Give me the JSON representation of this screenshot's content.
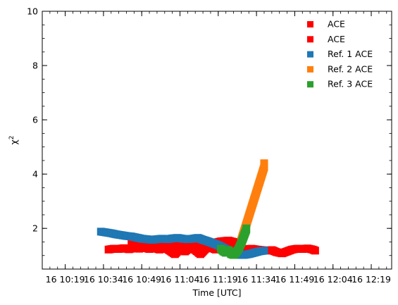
{
  "chart_data": {
    "type": "scatter",
    "xlabel": "Time [UTC]",
    "ylabel": "χ",
    "ylabel_superscript": "2",
    "ylim": [
      0.5,
      10
    ],
    "xlim": [
      "16 10:10",
      "16 12:27"
    ],
    "x_ticks": [
      "16 10:19",
      "16 10:34",
      "16 10:49",
      "16 11:04",
      "16 11:19",
      "16 11:34",
      "16 11:49",
      "16 12:04",
      "16 12:19"
    ],
    "y_ticks": [
      2,
      4,
      6,
      8,
      10
    ],
    "grid": false,
    "legend_position": "top-right",
    "series": [
      {
        "name": "ACE",
        "color": "#ff0000",
        "marker": "square",
        "points": [
          [
            "16 10:36",
            1.22
          ],
          [
            "16 10:38",
            1.25
          ],
          [
            "16 10:40",
            1.24
          ],
          [
            "16 10:42",
            1.27
          ],
          [
            "16 10:44",
            1.23
          ],
          [
            "16 10:46",
            1.28
          ],
          [
            "16 10:48",
            1.25
          ],
          [
            "16 10:50",
            1.3
          ],
          [
            "16 10:52",
            1.24
          ],
          [
            "16 10:54",
            1.28
          ],
          [
            "16 10:56",
            1.22
          ],
          [
            "16 10:58",
            1.3
          ],
          [
            "16 11:00",
            1.18
          ],
          [
            "16 11:02",
            1.05
          ],
          [
            "16 11:04",
            1.25
          ],
          [
            "16 11:06",
            1.15
          ],
          [
            "16 11:08",
            1.3
          ],
          [
            "16 11:10",
            1.2
          ],
          [
            "16 11:12",
            1.05
          ],
          [
            "16 11:14",
            1.25
          ],
          [
            "16 11:16",
            1.3
          ],
          [
            "16 11:18",
            1.22
          ],
          [
            "16 11:20",
            1.28
          ],
          [
            "16 11:22",
            1.25
          ],
          [
            "16 11:24",
            1.28
          ],
          [
            "16 11:26",
            1.24
          ],
          [
            "16 11:28",
            1.26
          ],
          [
            "16 11:30",
            1.22
          ],
          [
            "16 11:32",
            1.25
          ],
          [
            "16 11:34",
            1.22
          ],
          [
            "16 11:36",
            1.2
          ],
          [
            "16 11:38",
            1.18
          ],
          [
            "16 11:40",
            1.2
          ],
          [
            "16 11:42",
            1.12
          ],
          [
            "16 11:44",
            1.08
          ],
          [
            "16 11:46",
            1.15
          ],
          [
            "16 11:48",
            1.22
          ],
          [
            "16 11:50",
            1.25
          ],
          [
            "16 11:52",
            1.24
          ],
          [
            "16 11:54",
            1.26
          ],
          [
            "16 11:56",
            1.22
          ],
          [
            "16 11:57",
            1.18
          ]
        ]
      },
      {
        "name": "ACE",
        "color": "#ff0000",
        "marker": "square",
        "points": [
          [
            "16 10:45",
            1.48
          ],
          [
            "16 10:47",
            1.45
          ],
          [
            "16 10:50",
            1.42
          ],
          [
            "16 10:53",
            1.45
          ],
          [
            "16 10:56",
            1.4
          ],
          [
            "16 10:59",
            1.48
          ],
          [
            "16 11:02",
            1.42
          ],
          [
            "16 11:05",
            1.38
          ],
          [
            "16 11:08",
            1.45
          ],
          [
            "16 11:11",
            1.4
          ],
          [
            "16 11:14",
            1.48
          ],
          [
            "16 11:17",
            1.45
          ],
          [
            "16 11:20",
            1.52
          ],
          [
            "16 11:23",
            1.55
          ],
          [
            "16 11:25",
            1.5
          ],
          [
            "16 11:27",
            1.45
          ]
        ]
      },
      {
        "name": "Ref. 1 ACE",
        "color": "#1f77b4",
        "marker": "square",
        "points": [
          [
            "16 10:33",
            1.88
          ],
          [
            "16 10:35",
            1.85
          ],
          [
            "16 10:37",
            1.82
          ],
          [
            "16 10:39",
            1.78
          ],
          [
            "16 10:41",
            1.75
          ],
          [
            "16 10:43",
            1.72
          ],
          [
            "16 10:45",
            1.7
          ],
          [
            "16 10:47",
            1.66
          ],
          [
            "16 10:49",
            1.62
          ],
          [
            "16 10:51",
            1.6
          ],
          [
            "16 10:53",
            1.58
          ],
          [
            "16 10:55",
            1.6
          ],
          [
            "16 10:57",
            1.62
          ],
          [
            "16 10:59",
            1.6
          ],
          [
            "16 11:01",
            1.63
          ],
          [
            "16 11:03",
            1.65
          ],
          [
            "16 11:05",
            1.62
          ],
          [
            "16 11:07",
            1.6
          ],
          [
            "16 11:09",
            1.62
          ],
          [
            "16 11:11",
            1.65
          ],
          [
            "16 11:13",
            1.58
          ],
          [
            "16 11:15",
            1.52
          ],
          [
            "16 11:17",
            1.45
          ],
          [
            "16 11:19",
            1.38
          ],
          [
            "16 11:21",
            1.28
          ],
          [
            "16 11:23",
            1.18
          ],
          [
            "16 11:25",
            1.08
          ],
          [
            "16 11:27",
            1.02
          ],
          [
            "16 11:29",
            1.02
          ],
          [
            "16 11:31",
            1.05
          ],
          [
            "16 11:33",
            1.1
          ],
          [
            "16 11:35",
            1.15
          ],
          [
            "16 11:37",
            1.18
          ]
        ]
      },
      {
        "name": "Ref. 2 ACE",
        "color": "#ff7f0e",
        "marker": "square",
        "points": [
          [
            "16 11:28",
            1.55
          ],
          [
            "16 11:29",
            1.85
          ],
          [
            "16 11:30",
            2.15
          ],
          [
            "16 11:31",
            2.45
          ],
          [
            "16 11:32",
            2.75
          ],
          [
            "16 11:33",
            3.05
          ],
          [
            "16 11:34",
            3.35
          ],
          [
            "16 11:35",
            3.65
          ],
          [
            "16 11:36",
            3.95
          ],
          [
            "16 11:37",
            4.25
          ],
          [
            "16 11:37",
            4.4
          ]
        ]
      },
      {
        "name": "Ref. 3 ACE",
        "color": "#2ca02c",
        "marker": "square",
        "points": [
          [
            "16 11:20",
            1.25
          ],
          [
            "16 11:21",
            1.15
          ],
          [
            "16 11:22",
            1.1
          ],
          [
            "16 11:23",
            1.2
          ],
          [
            "16 11:24",
            1.05
          ],
          [
            "16 11:25",
            1.02
          ],
          [
            "16 11:26",
            1.1
          ],
          [
            "16 11:27",
            1.25
          ],
          [
            "16 11:28",
            1.45
          ],
          [
            "16 11:29",
            1.7
          ],
          [
            "16 11:30",
            1.95
          ],
          [
            "16 11:30",
            2.0
          ]
        ]
      }
    ]
  }
}
